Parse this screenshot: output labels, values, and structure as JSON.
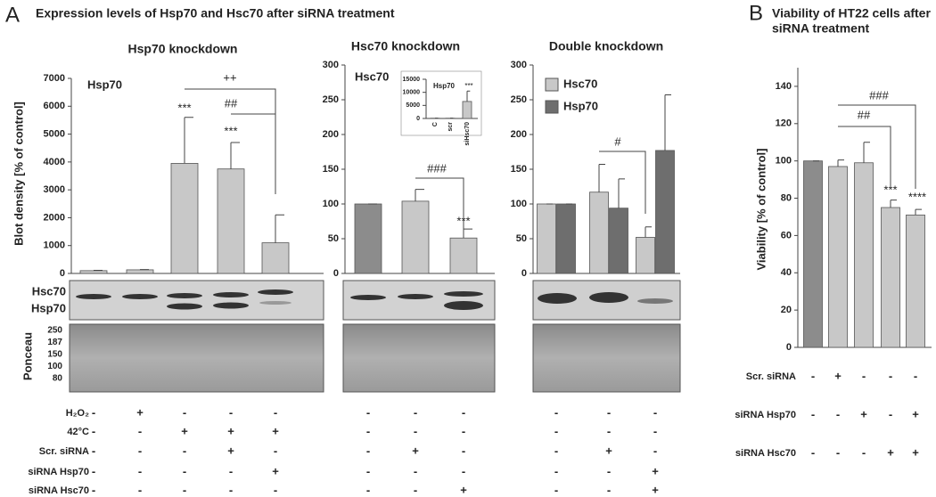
{
  "panels": {
    "a_label": "A",
    "a_title": "Expression levels of Hsp70 and Hsc70 after siRNA treatment",
    "b_label": "B"
  },
  "chart_data": [
    {
      "type": "bar",
      "title": "Hsp70 knockdown",
      "ylabel": "Blot density [% of control]",
      "categories": [
        null,
        null,
        null,
        null,
        null
      ],
      "series": [
        {
          "name": "Hsp70",
          "colors": [
            "#c8c8c8",
            "#c8c8c8",
            "#c8c8c8",
            "#c8c8c8",
            "#c8c8c8"
          ],
          "values": [
            100,
            130,
            3950,
            3750,
            1100
          ],
          "errors": [
            10,
            10,
            1650,
            950,
            1000
          ]
        }
      ],
      "ylim": [
        0,
        7000
      ],
      "yticks": [
        0,
        1000,
        2000,
        3000,
        4000,
        5000,
        6000,
        7000
      ],
      "annotations": [
        "***",
        "***",
        "++",
        "##"
      ]
    },
    {
      "type": "bar",
      "title": "Hsc70 knockdown",
      "categories": [
        null,
        null,
        null
      ],
      "series": [
        {
          "name": "Hsc70",
          "colors": [
            "#8c8c8c",
            "#c8c8c8",
            "#c8c8c8"
          ],
          "values": [
            100,
            104,
            51
          ],
          "errors": [
            0,
            17,
            13
          ]
        }
      ],
      "ylim": [
        0,
        300
      ],
      "yticks": [
        0,
        50,
        100,
        150,
        200,
        250,
        300
      ],
      "annotations": [
        "###",
        "***"
      ]
    },
    {
      "type": "bar",
      "title": "Hsp70",
      "categories": [
        "C",
        "scr",
        "siHsc70"
      ],
      "series": [
        {
          "colors": [
            "#c8c8c8",
            "#c8c8c8",
            "#c8c8c8"
          ],
          "values": [
            100,
            100,
            6500
          ],
          "errors": [
            0,
            0,
            4000
          ]
        }
      ],
      "ylim": [
        0,
        15000
      ],
      "yticks": [
        0,
        5000,
        10000,
        15000
      ],
      "annotations": [
        "***"
      ]
    },
    {
      "type": "bar",
      "title": "Double knockdown",
      "categories": [
        null,
        null,
        null
      ],
      "series": [
        {
          "name": "Hsc70",
          "color": "#c8c8c8",
          "values": [
            100,
            117,
            52
          ],
          "errors": [
            0,
            40,
            15
          ]
        },
        {
          "name": "Hsp70",
          "color": "#6e6e6e",
          "values": [
            100,
            94,
            177
          ],
          "errors": [
            0,
            42,
            80
          ]
        }
      ],
      "ylim": [
        0,
        300
      ],
      "yticks": [
        0,
        50,
        100,
        150,
        200,
        250,
        300
      ],
      "annotations": [
        "#"
      ]
    },
    {
      "type": "bar",
      "title_lines": [
        "Viability of HT22 cells after",
        "siRNA treatment"
      ],
      "ylabel": "Viability [% of control]",
      "categories": [
        null,
        null,
        null,
        null,
        null
      ],
      "series": [
        {
          "colors": [
            "#8c8c8c",
            "#c8c8c8",
            "#c8c8c8",
            "#c8c8c8",
            "#c8c8c8"
          ],
          "values": [
            100,
            97,
            99,
            75,
            71
          ],
          "errors": [
            0,
            3.5,
            11,
            4,
            3
          ]
        }
      ],
      "ylim": [
        0,
        150
      ],
      "yticks": [
        0,
        20,
        40,
        60,
        80,
        100,
        120,
        140
      ],
      "annotations": [
        "##",
        "###",
        "***",
        "****"
      ]
    }
  ],
  "blot": {
    "bands": [
      "Hsc70",
      "Hsp70"
    ],
    "ponceau": "Ponceau",
    "markers": [
      "250",
      "187",
      "150",
      "100",
      "80"
    ]
  },
  "treatments_a": {
    "rows": [
      {
        "label": "H₂O₂",
        "groups": [
          [
            "-",
            "+",
            "-",
            "-",
            "-"
          ],
          [
            "-",
            "-",
            "-"
          ],
          [
            "-",
            "-",
            "-"
          ]
        ]
      },
      {
        "label": "42°C",
        "groups": [
          [
            "-",
            "-",
            "+",
            "+",
            "+"
          ],
          [
            "-",
            "-",
            "-"
          ],
          [
            "-",
            "-",
            "-"
          ]
        ]
      },
      {
        "label": "Scr. siRNA",
        "groups": [
          [
            "-",
            "-",
            "-",
            "+",
            "-"
          ],
          [
            "-",
            "+",
            "-"
          ],
          [
            "-",
            "+",
            "-"
          ]
        ]
      },
      {
        "label": "siRNA Hsp70",
        "groups": [
          [
            "-",
            "-",
            "-",
            "-",
            "+"
          ],
          [
            "-",
            "-",
            "-"
          ],
          [
            "-",
            "-",
            "+"
          ]
        ]
      },
      {
        "label": "siRNA Hsc70",
        "groups": [
          [
            "-",
            "-",
            "-",
            "-",
            "-"
          ],
          [
            "-",
            "-",
            "+"
          ],
          [
            "-",
            "-",
            "+"
          ]
        ]
      }
    ]
  },
  "treatments_b": {
    "rows": [
      {
        "label": "Scr. siRNA",
        "signs": [
          "-",
          "+",
          "-",
          "-",
          "-"
        ]
      },
      {
        "label": "siRNA Hsp70",
        "signs": [
          "-",
          "-",
          "+",
          "-",
          "+"
        ]
      },
      {
        "label": "siRNA Hsc70",
        "signs": [
          "-",
          "-",
          "-",
          "+",
          "+"
        ]
      }
    ]
  }
}
